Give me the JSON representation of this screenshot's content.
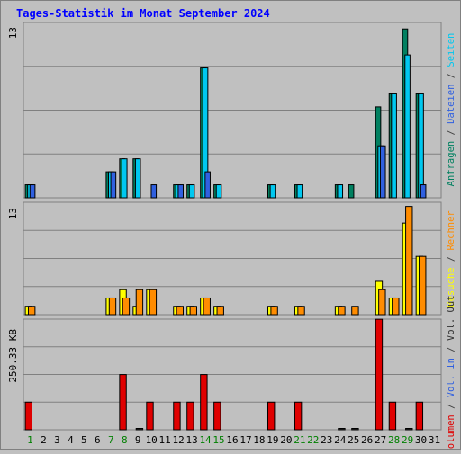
{
  "title": "Tages-Statistik im Monat September 2024",
  "colors": {
    "background": "#C0C0C0",
    "title": "#0000FF",
    "grid": "#808080",
    "anfragen": "#008060",
    "dateien": "#00C8F0",
    "seiten": "#00C8F0",
    "besuche": "#FFFF00",
    "rechner": "#FF8C00",
    "volumen": "#E00000",
    "vol_in": "#3060E0",
    "vol_out": "#303030",
    "weekend_day": "#008000",
    "weekday": "#000000",
    "legend_gray": "#404040"
  },
  "chart_data": [
    {
      "type": "bar",
      "panel": "top",
      "ylabel": "13",
      "ylim": [
        0,
        13.5
      ],
      "grid": true,
      "legend_position": "right-vertical",
      "legend": [
        {
          "text": "Anfragen",
          "color_key": "anfragen"
        },
        {
          "text": " / ",
          "color_key": "legend_gray"
        },
        {
          "text": "Dateien",
          "color_key": "vol_in"
        },
        {
          "text": " / ",
          "color_key": "legend_gray"
        },
        {
          "text": "Seiten",
          "color_key": "dateien"
        }
      ],
      "categories": [
        "1",
        "2",
        "3",
        "4",
        "5",
        "6",
        "7",
        "8",
        "9",
        "10",
        "11",
        "12",
        "13",
        "14",
        "15",
        "16",
        "17",
        "18",
        "19",
        "20",
        "21",
        "22",
        "23",
        "24",
        "25",
        "26",
        "27",
        "28",
        "29",
        "30",
        "31"
      ],
      "series": [
        {
          "name": "Anfragen",
          "color_key": "anfragen",
          "values": [
            1,
            0,
            0,
            0,
            0,
            0,
            2,
            3,
            3,
            0,
            0,
            1,
            1,
            10,
            1,
            0,
            0,
            0,
            1,
            0,
            1,
            0,
            0,
            1,
            1,
            0,
            7,
            8,
            13,
            8,
            0
          ]
        },
        {
          "name": "Dateien",
          "color_key": "dateien",
          "values": [
            1,
            0,
            0,
            0,
            0,
            0,
            2,
            3,
            3,
            0,
            0,
            1,
            1,
            10,
            1,
            0,
            0,
            0,
            1,
            0,
            1,
            0,
            0,
            1,
            0,
            0,
            4,
            8,
            11,
            8,
            0
          ]
        },
        {
          "name": "Seiten",
          "color_key": "vol_in",
          "values": [
            1,
            0,
            0,
            0,
            0,
            0,
            2,
            0,
            0,
            1,
            0,
            1,
            0,
            2,
            0,
            0,
            0,
            0,
            0,
            0,
            0,
            0,
            0,
            0,
            0,
            0,
            4,
            0,
            0,
            1,
            0
          ]
        }
      ]
    },
    {
      "type": "bar",
      "panel": "middle",
      "ylabel": "13",
      "ylim": [
        0,
        13.5
      ],
      "grid": true,
      "legend": [
        {
          "text": "Besuche",
          "color_key": "besuche"
        },
        {
          "text": " / ",
          "color_key": "legend_gray"
        },
        {
          "text": "Rechner",
          "color_key": "rechner"
        }
      ],
      "categories": [
        "1",
        "2",
        "3",
        "4",
        "5",
        "6",
        "7",
        "8",
        "9",
        "10",
        "11",
        "12",
        "13",
        "14",
        "15",
        "16",
        "17",
        "18",
        "19",
        "20",
        "21",
        "22",
        "23",
        "24",
        "25",
        "26",
        "27",
        "28",
        "29",
        "30",
        "31"
      ],
      "series": [
        {
          "name": "Besuche",
          "color_key": "besuche",
          "values": [
            1,
            0,
            0,
            0,
            0,
            0,
            2,
            3,
            1,
            3,
            0,
            1,
            1,
            2,
            1,
            0,
            0,
            0,
            1,
            0,
            1,
            0,
            0,
            1,
            0,
            0,
            4,
            2,
            11,
            7,
            0
          ]
        },
        {
          "name": "Rechner",
          "color_key": "rechner",
          "values": [
            1,
            0,
            0,
            0,
            0,
            0,
            2,
            2,
            3,
            3,
            0,
            1,
            1,
            2,
            1,
            0,
            0,
            0,
            1,
            0,
            1,
            0,
            0,
            1,
            1,
            0,
            3,
            2,
            13,
            7,
            0
          ]
        }
      ]
    },
    {
      "type": "bar",
      "panel": "bottom",
      "ylabel": "250.33 KB",
      "ylim": [
        0,
        500.66
      ],
      "grid": true,
      "legend": [
        {
          "text": "Volumen",
          "color_key": "volumen"
        },
        {
          "text": " / ",
          "color_key": "legend_gray"
        },
        {
          "text": "Vol. In",
          "color_key": "vol_in"
        },
        {
          "text": " / ",
          "color_key": "legend_gray"
        },
        {
          "text": "Vol. Out",
          "color_key": "vol_out"
        }
      ],
      "categories": [
        "1",
        "2",
        "3",
        "4",
        "5",
        "6",
        "7",
        "8",
        "9",
        "10",
        "11",
        "12",
        "13",
        "14",
        "15",
        "16",
        "17",
        "18",
        "19",
        "20",
        "21",
        "22",
        "23",
        "24",
        "25",
        "26",
        "27",
        "28",
        "29",
        "30",
        "31"
      ],
      "series": [
        {
          "name": "Volumen",
          "color_key": "volumen",
          "values": [
            125,
            0,
            0,
            0,
            0,
            0,
            0,
            250,
            0,
            125,
            0,
            125,
            125,
            250,
            125,
            0,
            0,
            0,
            125,
            0,
            125,
            0,
            0,
            0,
            0,
            0,
            500,
            125,
            0,
            125,
            0
          ]
        },
        {
          "name": "Vol. Out",
          "color_key": "vol_out",
          "values": [
            0,
            0,
            0,
            0,
            0,
            0,
            0,
            0,
            5,
            0,
            0,
            0,
            0,
            0,
            0,
            0,
            0,
            0,
            0,
            0,
            0,
            0,
            0,
            5,
            5,
            0,
            0,
            0,
            5,
            0,
            0
          ]
        }
      ]
    }
  ],
  "x_axis": {
    "labels": [
      "1",
      "2",
      "3",
      "4",
      "5",
      "6",
      "7",
      "8",
      "9",
      "10",
      "11",
      "12",
      "13",
      "14",
      "15",
      "16",
      "17",
      "18",
      "19",
      "20",
      "21",
      "22",
      "23",
      "24",
      "25",
      "26",
      "27",
      "28",
      "29",
      "30",
      "31"
    ],
    "weekend_days": [
      1,
      7,
      8,
      14,
      15,
      21,
      22,
      28,
      29
    ]
  }
}
